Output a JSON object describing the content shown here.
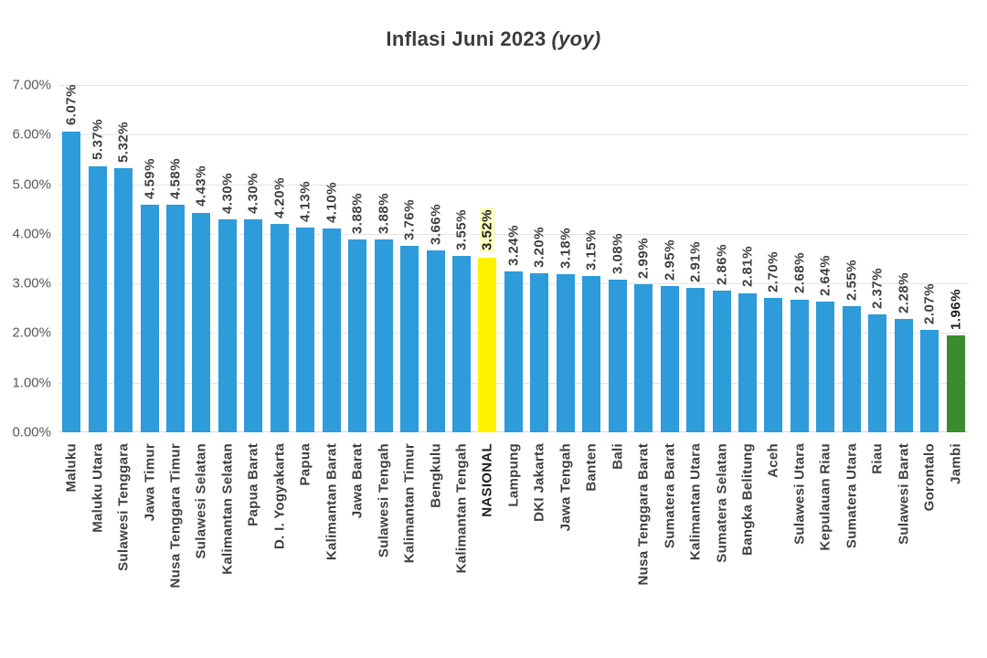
{
  "title": {
    "main": "Inflasi Juni 2023",
    "suffix": "(yoy)"
  },
  "colors": {
    "bar_blue": "#2E9BDB",
    "bar_yellow": "#FFF100",
    "bar_green": "#3A8C2F",
    "grid": "#E4E4E4",
    "axis_text": "#595959",
    "label_text": "#3F3F3F",
    "value_highlight_bg": "#FFFFC2"
  },
  "chart_data": {
    "type": "bar",
    "title": "Inflasi Juni 2023 (yoy)",
    "xlabel": "",
    "ylabel": "",
    "ylim": [
      0,
      7
    ],
    "grid": true,
    "legend": false,
    "y_ticks": [
      "7.00%",
      "6.00%",
      "5.00%",
      "4.00%",
      "3.00%",
      "2.00%",
      "1.00%",
      "0.00%"
    ],
    "bars": [
      {
        "label": "Maluku",
        "value": 6.07,
        "display": "6.07%",
        "color": "blue",
        "bold_value": false,
        "bold_label": false,
        "value_bg": false
      },
      {
        "label": "Maluku Utara",
        "value": 5.37,
        "display": "5.37%",
        "color": "blue",
        "bold_value": false,
        "bold_label": false,
        "value_bg": false
      },
      {
        "label": "Sulawesi Tenggara",
        "value": 5.32,
        "display": "5.32%",
        "color": "blue",
        "bold_value": false,
        "bold_label": false,
        "value_bg": false
      },
      {
        "label": "Jawa Timur",
        "value": 4.59,
        "display": "4.59%",
        "color": "blue",
        "bold_value": false,
        "bold_label": false,
        "value_bg": false
      },
      {
        "label": "Nusa Tenggara Timur",
        "value": 4.58,
        "display": "4.58%",
        "color": "blue",
        "bold_value": false,
        "bold_label": false,
        "value_bg": false
      },
      {
        "label": "Sulawesi Selatan",
        "value": 4.43,
        "display": "4.43%",
        "color": "blue",
        "bold_value": false,
        "bold_label": false,
        "value_bg": false
      },
      {
        "label": "Kalimantan Selatan",
        "value": 4.3,
        "display": "4.30%",
        "color": "blue",
        "bold_value": false,
        "bold_label": false,
        "value_bg": false
      },
      {
        "label": "Papua Barat",
        "value": 4.3,
        "display": "4.30%",
        "color": "blue",
        "bold_value": false,
        "bold_label": false,
        "value_bg": false
      },
      {
        "label": "D. I. Yogyakarta",
        "value": 4.2,
        "display": "4.20%",
        "color": "blue",
        "bold_value": false,
        "bold_label": false,
        "value_bg": false
      },
      {
        "label": "Papua",
        "value": 4.13,
        "display": "4.13%",
        "color": "blue",
        "bold_value": false,
        "bold_label": false,
        "value_bg": false
      },
      {
        "label": "Kalimantan Barat",
        "value": 4.1,
        "display": "4.10%",
        "color": "blue",
        "bold_value": false,
        "bold_label": false,
        "value_bg": false
      },
      {
        "label": "Jawa Barat",
        "value": 3.88,
        "display": "3.88%",
        "color": "blue",
        "bold_value": false,
        "bold_label": false,
        "value_bg": false
      },
      {
        "label": "Sulawesi Tengah",
        "value": 3.88,
        "display": "3.88%",
        "color": "blue",
        "bold_value": false,
        "bold_label": false,
        "value_bg": false
      },
      {
        "label": "Kalimantan Timur",
        "value": 3.76,
        "display": "3.76%",
        "color": "blue",
        "bold_value": false,
        "bold_label": false,
        "value_bg": false
      },
      {
        "label": "Bengkulu",
        "value": 3.66,
        "display": "3.66%",
        "color": "blue",
        "bold_value": false,
        "bold_label": false,
        "value_bg": false
      },
      {
        "label": "Kalimantan Tengah",
        "value": 3.55,
        "display": "3.55%",
        "color": "blue",
        "bold_value": false,
        "bold_label": false,
        "value_bg": false
      },
      {
        "label": "NASIONAL",
        "value": 3.52,
        "display": "3.52%",
        "color": "yellow",
        "bold_value": true,
        "bold_label": true,
        "value_bg": true
      },
      {
        "label": "Lampung",
        "value": 3.24,
        "display": "3.24%",
        "color": "blue",
        "bold_value": false,
        "bold_label": false,
        "value_bg": false
      },
      {
        "label": "DKI Jakarta",
        "value": 3.2,
        "display": "3.20%",
        "color": "blue",
        "bold_value": false,
        "bold_label": false,
        "value_bg": false
      },
      {
        "label": "Jawa Tengah",
        "value": 3.18,
        "display": "3.18%",
        "color": "blue",
        "bold_value": false,
        "bold_label": false,
        "value_bg": false
      },
      {
        "label": "Banten",
        "value": 3.15,
        "display": "3.15%",
        "color": "blue",
        "bold_value": false,
        "bold_label": false,
        "value_bg": false
      },
      {
        "label": "Bali",
        "value": 3.08,
        "display": "3.08%",
        "color": "blue",
        "bold_value": false,
        "bold_label": false,
        "value_bg": false
      },
      {
        "label": "Nusa Tenggara Barat",
        "value": 2.99,
        "display": "2.99%",
        "color": "blue",
        "bold_value": false,
        "bold_label": false,
        "value_bg": false
      },
      {
        "label": "Sumatera Barat",
        "value": 2.95,
        "display": "2.95%",
        "color": "blue",
        "bold_value": false,
        "bold_label": false,
        "value_bg": false
      },
      {
        "label": "Kalimantan Utara",
        "value": 2.91,
        "display": "2.91%",
        "color": "blue",
        "bold_value": false,
        "bold_label": false,
        "value_bg": false
      },
      {
        "label": "Sumatera Selatan",
        "value": 2.86,
        "display": "2.86%",
        "color": "blue",
        "bold_value": false,
        "bold_label": false,
        "value_bg": false
      },
      {
        "label": "Bangka Belitung",
        "value": 2.81,
        "display": "2.81%",
        "color": "blue",
        "bold_value": false,
        "bold_label": false,
        "value_bg": false
      },
      {
        "label": "Aceh",
        "value": 2.7,
        "display": "2.70%",
        "color": "blue",
        "bold_value": false,
        "bold_label": false,
        "value_bg": false
      },
      {
        "label": "Sulawesi Utara",
        "value": 2.68,
        "display": "2.68%",
        "color": "blue",
        "bold_value": false,
        "bold_label": false,
        "value_bg": false
      },
      {
        "label": "Kepulauan Riau",
        "value": 2.64,
        "display": "2.64%",
        "color": "blue",
        "bold_value": false,
        "bold_label": false,
        "value_bg": false
      },
      {
        "label": "Sumatera Utara",
        "value": 2.55,
        "display": "2.55%",
        "color": "blue",
        "bold_value": false,
        "bold_label": false,
        "value_bg": false
      },
      {
        "label": "Riau",
        "value": 2.37,
        "display": "2.37%",
        "color": "blue",
        "bold_value": false,
        "bold_label": false,
        "value_bg": false
      },
      {
        "label": "Sulawesi Barat",
        "value": 2.28,
        "display": "2.28%",
        "color": "blue",
        "bold_value": false,
        "bold_label": false,
        "value_bg": false
      },
      {
        "label": "Gorontalo",
        "value": 2.07,
        "display": "2.07%",
        "color": "blue",
        "bold_value": false,
        "bold_label": false,
        "value_bg": false
      },
      {
        "label": "Jambi",
        "value": 1.96,
        "display": "1.96%",
        "color": "green",
        "bold_value": true,
        "bold_label": false,
        "value_bg": false
      }
    ]
  }
}
